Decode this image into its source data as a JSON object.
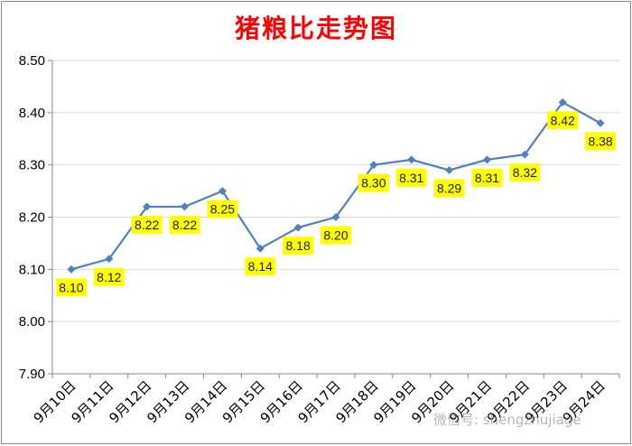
{
  "chart_data": {
    "type": "line",
    "title": "猪粮比走势图",
    "categories": [
      "9月10日",
      "9月11日",
      "9月12日",
      "9月13日",
      "9月14日",
      "9月15日",
      "9月16日",
      "9月17日",
      "9月18日",
      "9月19日",
      "9月20日",
      "9月21日",
      "9月22日",
      "9月23日",
      "9月24日"
    ],
    "series": [
      {
        "values": [
          8.1,
          8.12,
          8.22,
          8.22,
          8.25,
          8.14,
          8.18,
          8.2,
          8.3,
          8.31,
          8.29,
          8.31,
          8.32,
          8.42,
          8.38
        ],
        "labels": [
          "8.10",
          "8.12",
          "8.22",
          "8.22",
          "8.25",
          "8.14",
          "8.18",
          "8.20",
          "8.30",
          "8.31",
          "8.29",
          "8.31",
          "8.32",
          "8.42",
          "8.38"
        ]
      }
    ],
    "ylim": [
      7.9,
      8.5
    ],
    "yticks": [
      "7.90",
      "8.00",
      "8.10",
      "8.20",
      "8.30",
      "8.40",
      "8.50"
    ],
    "grid": true,
    "legend": "none",
    "colors": {
      "line": "#4f81bd",
      "label_bg": "#ffff00",
      "title": "#ff0000",
      "grid": "#d9d9d9"
    }
  },
  "watermark": "微信号: shengzhujiage"
}
